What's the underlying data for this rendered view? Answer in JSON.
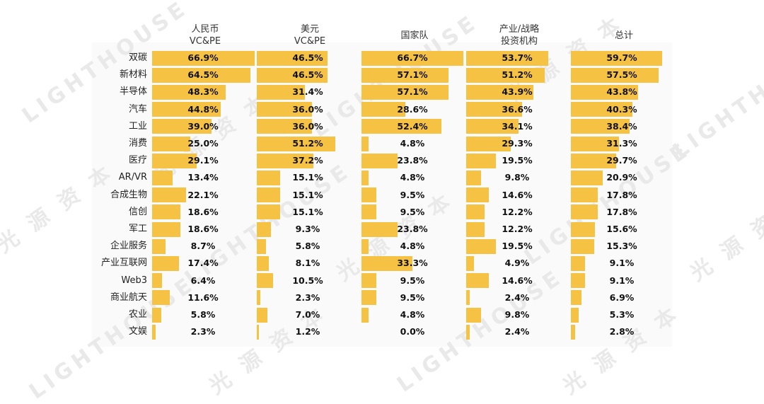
{
  "chart_data": {
    "type": "bar",
    "series": [
      {
        "name": "人民币\nVC&PE",
        "values": [
          66.9,
          64.5,
          48.3,
          44.8,
          39.0,
          25.0,
          29.1,
          13.4,
          22.1,
          18.6,
          18.6,
          8.7,
          17.4,
          6.4,
          11.6,
          5.8,
          2.3
        ]
      },
      {
        "name": "美元\nVC&PE",
        "values": [
          46.5,
          46.5,
          31.4,
          36.0,
          36.0,
          51.2,
          37.2,
          15.1,
          15.1,
          15.1,
          9.3,
          5.8,
          8.1,
          10.5,
          2.3,
          7.0,
          1.2
        ]
      },
      {
        "name": "国家队",
        "values": [
          66.7,
          57.1,
          57.1,
          28.6,
          52.4,
          4.8,
          23.8,
          4.8,
          9.5,
          9.5,
          23.8,
          4.8,
          33.3,
          9.5,
          9.5,
          4.8,
          0.0
        ]
      },
      {
        "name": "产业/战略\n投资机构",
        "values": [
          53.7,
          51.2,
          43.9,
          36.6,
          34.1,
          29.3,
          19.5,
          9.8,
          14.6,
          12.2,
          12.2,
          19.5,
          4.9,
          14.6,
          2.4,
          9.8,
          2.4
        ]
      },
      {
        "name": "总计",
        "values": [
          59.7,
          57.5,
          43.8,
          40.3,
          38.4,
          31.3,
          29.7,
          20.9,
          17.8,
          17.8,
          15.6,
          15.3,
          9.1,
          9.1,
          6.9,
          5.3,
          2.8
        ]
      }
    ],
    "categories": [
      "双碳",
      "新材料",
      "半导体",
      "汽车",
      "工业",
      "消费",
      "医疗",
      "AR/VR",
      "合成生物",
      "信创",
      "军工",
      "企业服务",
      "产业互联网",
      "Web3",
      "商业航天",
      "农业",
      "文娱"
    ],
    "value_suffix": "%",
    "bar_color": "#f6c244"
  },
  "watermark": {
    "texts": [
      "LIGHTHOUSE",
      "光 源 资 本"
    ]
  }
}
